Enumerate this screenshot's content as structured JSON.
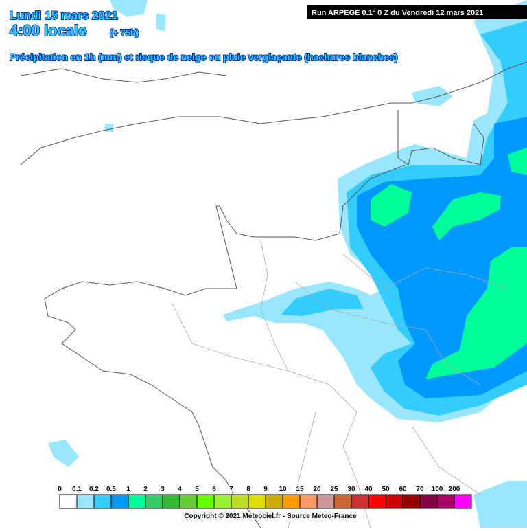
{
  "header": {
    "date": "Lundi 15 mars 2021",
    "time": "4:00 locale",
    "lead": "(+ 75h)",
    "description": "Précipitation en 1h (mm) et risque de neige ou pluie verglaçante (hachures blanches)",
    "run": "Run ARPEGE 0.1° 0 Z du Vendredi 12 mars 2021"
  },
  "legend": {
    "labels": [
      "0",
      "0.1",
      "0.2",
      "0.5",
      "1",
      "2",
      "3",
      "4",
      "5",
      "6",
      "7",
      "8",
      "9",
      "10",
      "15",
      "20",
      "25",
      "30",
      "40",
      "50",
      "60",
      "70",
      "100",
      "200"
    ],
    "colors": [
      "#ffffff",
      "#99e6ff",
      "#33ccff",
      "#0099ff",
      "#00ff99",
      "#33cc66",
      "#33bb33",
      "#66cc33",
      "#66ff00",
      "#99ee33",
      "#bbdd22",
      "#dddd00",
      "#ccaa00",
      "#ff9900",
      "#ff9966",
      "#cc9999",
      "#cc6633",
      "#cc3333",
      "#ff0000",
      "#cc0000",
      "#990000",
      "#880044",
      "#aa0066",
      "#ff00ff"
    ]
  },
  "footer": {
    "copyright": "Copyright © 2021 Meteociel.fr - Source Meteo-France"
  }
}
